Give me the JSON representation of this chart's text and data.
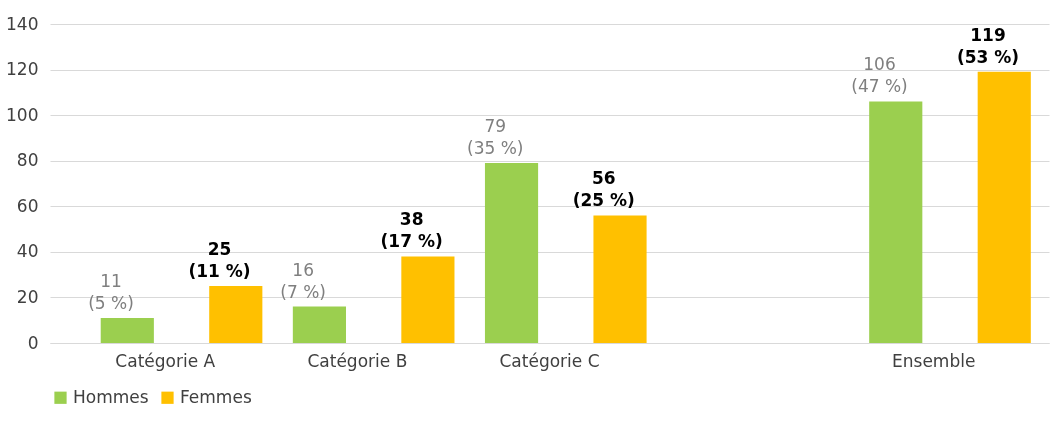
{
  "chart_data": {
    "type": "bar",
    "categories": [
      "Catégorie A",
      "Catégorie B",
      "Catégorie C",
      null,
      "Ensemble"
    ],
    "series": [
      {
        "name": "Hommes",
        "color": "#9bcf4f",
        "values": [
          11,
          16,
          79,
          null,
          106
        ],
        "value_labels": [
          "11\n(5 %)",
          "16\n(7 %)",
          "79\n(35 %)",
          null,
          "106\n(47 %)"
        ]
      },
      {
        "name": "Femmes",
        "color": "#ffc000",
        "values": [
          25,
          38,
          56,
          null,
          119
        ],
        "value_labels": [
          "25\n(11 %)",
          "38\n(17 %)",
          "56\n(25 %)",
          null,
          "119\n(53 %)"
        ]
      }
    ],
    "ylim": [
      0,
      140
    ],
    "yticks": [
      0,
      20,
      40,
      60,
      80,
      100,
      120,
      140
    ],
    "grid": "y",
    "legend": "bottom"
  }
}
